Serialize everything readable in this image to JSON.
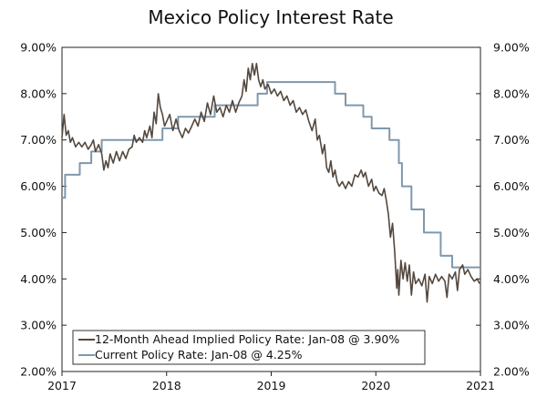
{
  "chart_data": {
    "type": "line",
    "title": "Mexico Policy Interest Rate",
    "xlabel": "",
    "ylabel": "",
    "x_range": [
      2017,
      2021
    ],
    "x_ticks": [
      "2017",
      "2018",
      "2019",
      "2020",
      "2021"
    ],
    "ylim": [
      2.0,
      9.0
    ],
    "y_ticks_left": [
      "2.00%",
      "3.00%",
      "4.00%",
      "5.00%",
      "6.00%",
      "7.00%",
      "8.00%",
      "9.00%"
    ],
    "y_ticks_right": [
      "2.00%",
      "3.00%",
      "4.00%",
      "5.00%",
      "6.00%",
      "7.00%",
      "8.00%",
      "9.00%"
    ],
    "grid": false,
    "legend_position": "bottom-left",
    "series": [
      {
        "name": "12-Month Ahead Implied Policy Rate: Jan-08 @ 3.90%",
        "color": "#54483e",
        "style": "line",
        "points": [
          [
            2017.0,
            7.05
          ],
          [
            2017.02,
            7.55
          ],
          [
            2017.04,
            7.1
          ],
          [
            2017.06,
            7.2
          ],
          [
            2017.08,
            6.95
          ],
          [
            2017.1,
            7.05
          ],
          [
            2017.13,
            6.85
          ],
          [
            2017.16,
            6.95
          ],
          [
            2017.19,
            6.85
          ],
          [
            2017.22,
            6.95
          ],
          [
            2017.25,
            6.8
          ],
          [
            2017.28,
            6.9
          ],
          [
            2017.3,
            7.0
          ],
          [
            2017.32,
            6.75
          ],
          [
            2017.35,
            6.9
          ],
          [
            2017.38,
            6.7
          ],
          [
            2017.4,
            6.35
          ],
          [
            2017.42,
            6.55
          ],
          [
            2017.44,
            6.4
          ],
          [
            2017.46,
            6.7
          ],
          [
            2017.49,
            6.5
          ],
          [
            2017.52,
            6.75
          ],
          [
            2017.55,
            6.55
          ],
          [
            2017.58,
            6.75
          ],
          [
            2017.61,
            6.6
          ],
          [
            2017.64,
            6.8
          ],
          [
            2017.67,
            6.85
          ],
          [
            2017.69,
            7.1
          ],
          [
            2017.71,
            6.95
          ],
          [
            2017.74,
            7.05
          ],
          [
            2017.77,
            6.95
          ],
          [
            2017.79,
            7.2
          ],
          [
            2017.81,
            7.05
          ],
          [
            2017.84,
            7.3
          ],
          [
            2017.86,
            7.05
          ],
          [
            2017.88,
            7.6
          ],
          [
            2017.9,
            7.35
          ],
          [
            2017.92,
            8.0
          ],
          [
            2017.94,
            7.7
          ],
          [
            2017.96,
            7.55
          ],
          [
            2017.98,
            7.3
          ],
          [
            2018.0,
            7.4
          ],
          [
            2018.03,
            7.55
          ],
          [
            2018.06,
            7.2
          ],
          [
            2018.09,
            7.45
          ],
          [
            2018.12,
            7.2
          ],
          [
            2018.15,
            7.05
          ],
          [
            2018.18,
            7.25
          ],
          [
            2018.21,
            7.15
          ],
          [
            2018.24,
            7.3
          ],
          [
            2018.27,
            7.45
          ],
          [
            2018.3,
            7.3
          ],
          [
            2018.33,
            7.6
          ],
          [
            2018.36,
            7.4
          ],
          [
            2018.39,
            7.8
          ],
          [
            2018.42,
            7.55
          ],
          [
            2018.45,
            7.95
          ],
          [
            2018.48,
            7.6
          ],
          [
            2018.51,
            7.7
          ],
          [
            2018.54,
            7.5
          ],
          [
            2018.57,
            7.75
          ],
          [
            2018.6,
            7.6
          ],
          [
            2018.63,
            7.85
          ],
          [
            2018.66,
            7.6
          ],
          [
            2018.69,
            7.8
          ],
          [
            2018.72,
            7.95
          ],
          [
            2018.74,
            8.3
          ],
          [
            2018.76,
            8.05
          ],
          [
            2018.78,
            8.55
          ],
          [
            2018.8,
            8.3
          ],
          [
            2018.82,
            8.65
          ],
          [
            2018.84,
            8.4
          ],
          [
            2018.86,
            8.65
          ],
          [
            2018.88,
            8.3
          ],
          [
            2018.9,
            8.15
          ],
          [
            2018.92,
            8.3
          ],
          [
            2018.94,
            8.1
          ],
          [
            2018.97,
            8.2
          ],
          [
            2019.0,
            8.0
          ],
          [
            2019.03,
            8.1
          ],
          [
            2019.06,
            7.95
          ],
          [
            2019.09,
            8.05
          ],
          [
            2019.12,
            7.85
          ],
          [
            2019.15,
            7.95
          ],
          [
            2019.18,
            7.75
          ],
          [
            2019.21,
            7.85
          ],
          [
            2019.24,
            7.6
          ],
          [
            2019.27,
            7.7
          ],
          [
            2019.3,
            7.55
          ],
          [
            2019.33,
            7.65
          ],
          [
            2019.36,
            7.4
          ],
          [
            2019.39,
            7.2
          ],
          [
            2019.42,
            7.45
          ],
          [
            2019.44,
            7.0
          ],
          [
            2019.46,
            7.1
          ],
          [
            2019.49,
            6.7
          ],
          [
            2019.51,
            6.9
          ],
          [
            2019.53,
            6.4
          ],
          [
            2019.55,
            6.3
          ],
          [
            2019.57,
            6.55
          ],
          [
            2019.59,
            6.2
          ],
          [
            2019.61,
            6.35
          ],
          [
            2019.63,
            6.1
          ],
          [
            2019.65,
            6.0
          ],
          [
            2019.68,
            6.1
          ],
          [
            2019.71,
            5.95
          ],
          [
            2019.74,
            6.1
          ],
          [
            2019.77,
            6.0
          ],
          [
            2019.8,
            6.25
          ],
          [
            2019.83,
            6.2
          ],
          [
            2019.86,
            6.35
          ],
          [
            2019.88,
            6.2
          ],
          [
            2019.9,
            6.3
          ],
          [
            2019.93,
            6.0
          ],
          [
            2019.96,
            6.15
          ],
          [
            2019.98,
            5.9
          ],
          [
            2020.0,
            6.0
          ],
          [
            2020.03,
            5.85
          ],
          [
            2020.06,
            5.8
          ],
          [
            2020.08,
            5.95
          ],
          [
            2020.1,
            5.7
          ],
          [
            2020.12,
            5.4
          ],
          [
            2020.14,
            4.9
          ],
          [
            2020.16,
            5.2
          ],
          [
            2020.18,
            4.6
          ],
          [
            2020.2,
            3.8
          ],
          [
            2020.21,
            4.2
          ],
          [
            2020.22,
            3.65
          ],
          [
            2020.24,
            4.4
          ],
          [
            2020.26,
            4.0
          ],
          [
            2020.28,
            4.35
          ],
          [
            2020.3,
            3.95
          ],
          [
            2020.32,
            4.3
          ],
          [
            2020.34,
            3.65
          ],
          [
            2020.36,
            4.15
          ],
          [
            2020.38,
            3.9
          ],
          [
            2020.41,
            4.0
          ],
          [
            2020.44,
            3.85
          ],
          [
            2020.47,
            4.1
          ],
          [
            2020.49,
            3.5
          ],
          [
            2020.51,
            4.05
          ],
          [
            2020.54,
            3.9
          ],
          [
            2020.57,
            4.1
          ],
          [
            2020.6,
            3.95
          ],
          [
            2020.63,
            4.05
          ],
          [
            2020.66,
            3.95
          ],
          [
            2020.68,
            3.6
          ],
          [
            2020.7,
            4.1
          ],
          [
            2020.73,
            4.0
          ],
          [
            2020.76,
            4.15
          ],
          [
            2020.78,
            3.75
          ],
          [
            2020.8,
            4.2
          ],
          [
            2020.83,
            4.3
          ],
          [
            2020.85,
            4.1
          ],
          [
            2020.88,
            4.2
          ],
          [
            2020.91,
            4.05
          ],
          [
            2020.94,
            3.95
          ],
          [
            2020.97,
            4.0
          ],
          [
            2020.99,
            3.9
          ]
        ]
      },
      {
        "name": "Current Policy Rate: Jan-08 @ 4.25%",
        "color": "#7f98ac",
        "style": "step",
        "points": [
          [
            2017.0,
            5.75
          ],
          [
            2017.03,
            6.25
          ],
          [
            2017.17,
            6.5
          ],
          [
            2017.28,
            6.75
          ],
          [
            2017.38,
            7.0
          ],
          [
            2017.96,
            7.25
          ],
          [
            2018.11,
            7.5
          ],
          [
            2018.46,
            7.75
          ],
          [
            2018.87,
            8.0
          ],
          [
            2018.96,
            8.25
          ],
          [
            2019.61,
            8.0
          ],
          [
            2019.71,
            7.75
          ],
          [
            2019.88,
            7.5
          ],
          [
            2019.96,
            7.25
          ],
          [
            2020.13,
            7.0
          ],
          [
            2020.22,
            6.5
          ],
          [
            2020.25,
            6.0
          ],
          [
            2020.34,
            5.5
          ],
          [
            2020.46,
            5.0
          ],
          [
            2020.62,
            4.5
          ],
          [
            2020.73,
            4.25
          ],
          [
            2021.0,
            4.25
          ]
        ]
      }
    ]
  }
}
